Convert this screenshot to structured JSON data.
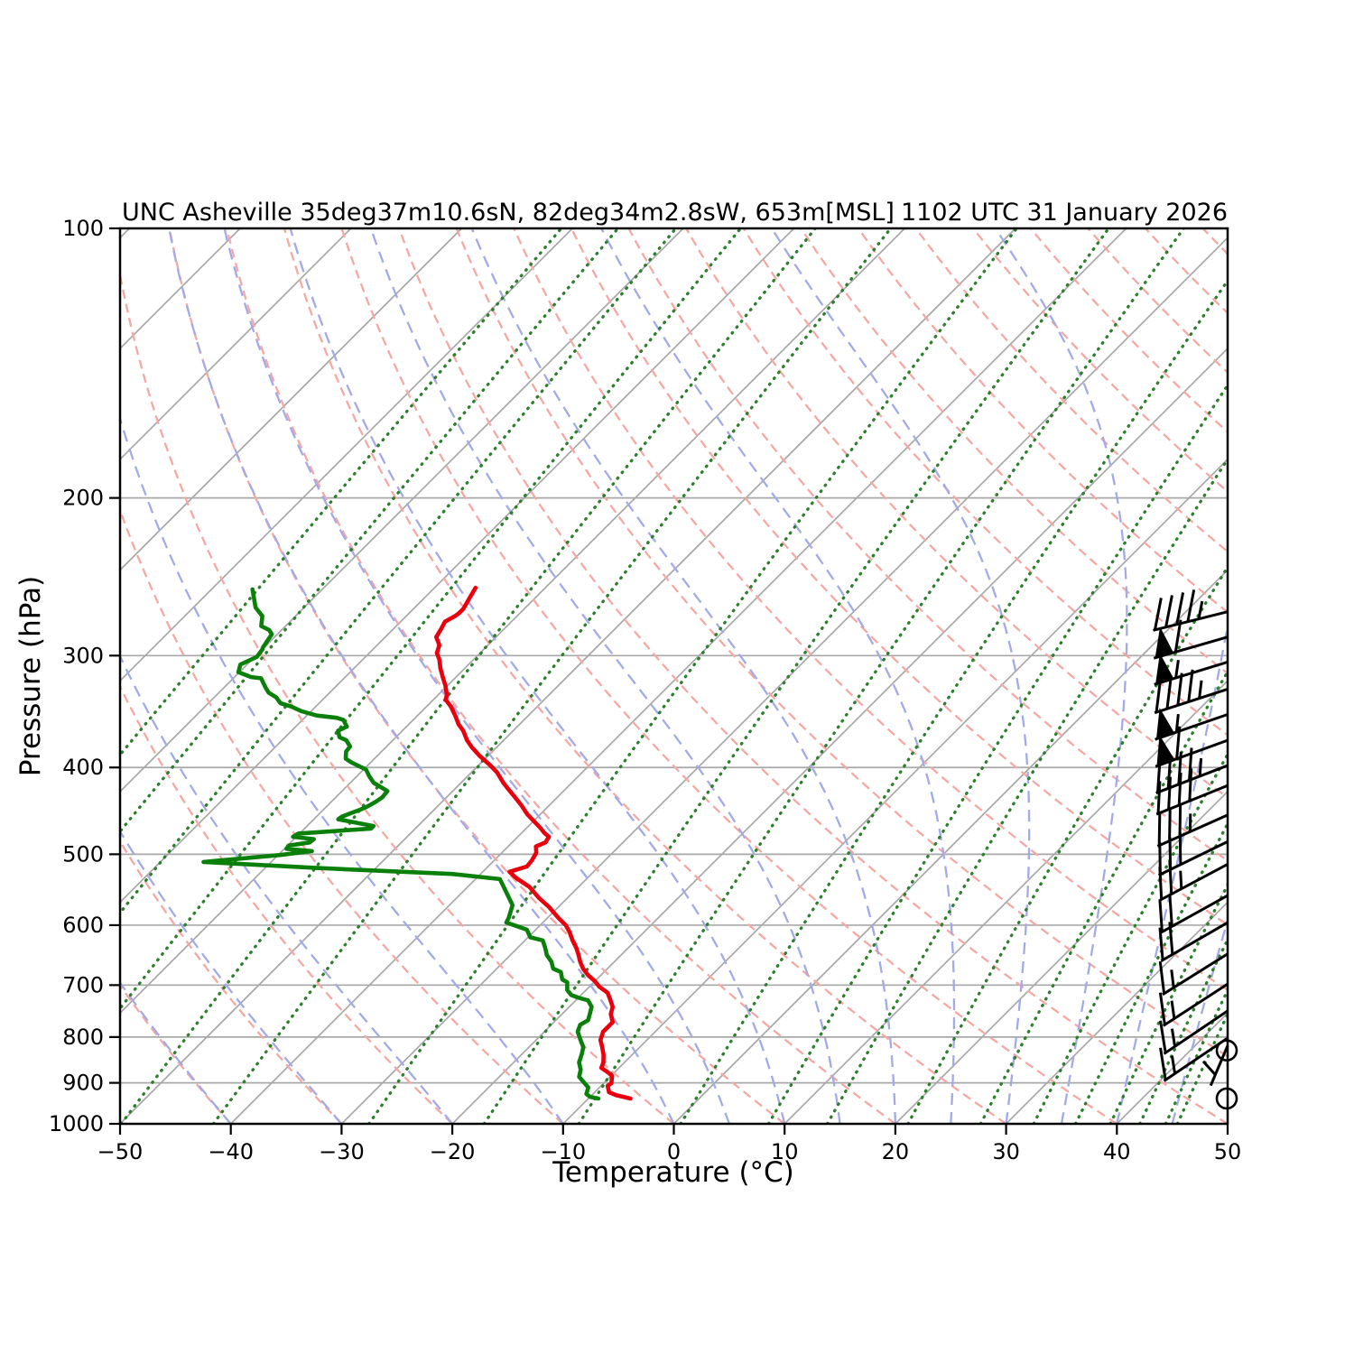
{
  "header": {
    "title_left": "UNC Asheville 35deg37m10.6sN, 82deg34m2.8sW, 653m[MSL]",
    "title_right": "1102 UTC 31 January 2026"
  },
  "axes": {
    "xlabel": "Temperature (°C)",
    "ylabel": "Pressure (hPa)",
    "x_ticks": [
      {
        "v": -50,
        "label": "−50"
      },
      {
        "v": -40,
        "label": "−40"
      },
      {
        "v": -30,
        "label": "−30"
      },
      {
        "v": -20,
        "label": "−20"
      },
      {
        "v": -10,
        "label": "−10"
      },
      {
        "v": 0,
        "label": "0"
      },
      {
        "v": 10,
        "label": "10"
      },
      {
        "v": 20,
        "label": "20"
      },
      {
        "v": 30,
        "label": "30"
      },
      {
        "v": 40,
        "label": "40"
      },
      {
        "v": 50,
        "label": "50"
      }
    ],
    "y_ticks": [
      {
        "v": 100,
        "label": "100"
      },
      {
        "v": 200,
        "label": "200"
      },
      {
        "v": 300,
        "label": "300"
      },
      {
        "v": 400,
        "label": "400"
      },
      {
        "v": 500,
        "label": "500"
      },
      {
        "v": 600,
        "label": "600"
      },
      {
        "v": 700,
        "label": "700"
      },
      {
        "v": 800,
        "label": "800"
      },
      {
        "v": 900,
        "label": "900"
      },
      {
        "v": 1000,
        "label": "1000"
      }
    ]
  },
  "chart_data": {
    "type": "line",
    "subtype": "skew-t-log-p-sounding",
    "title": "UNC Asheville 35deg37m10.6sN, 82deg34m2.8sW, 653m[MSL]",
    "xlabel": "Temperature (°C)",
    "ylabel": "Pressure (hPa)",
    "xlim_c": [
      -50,
      50
    ],
    "ylim_hpa": [
      1000,
      100
    ],
    "y_scale": "log",
    "skew_deg": 45,
    "series": [
      {
        "name": "temperature",
        "color": "#e8000d",
        "points_p_t": [
          [
            252,
            -66.3
          ],
          [
            259,
            -65.9
          ],
          [
            266,
            -65.5
          ],
          [
            269,
            -65.5
          ],
          [
            271,
            -65.6
          ],
          [
            275,
            -66.0
          ],
          [
            280,
            -65.7
          ],
          [
            286,
            -65.4
          ],
          [
            292,
            -64.4
          ],
          [
            298,
            -63.9
          ],
          [
            303,
            -63.1
          ],
          [
            310,
            -62.2
          ],
          [
            317,
            -61.2
          ],
          [
            324,
            -60.2
          ],
          [
            332,
            -59.2
          ],
          [
            336,
            -58.9
          ],
          [
            342,
            -57.8
          ],
          [
            350,
            -56.6
          ],
          [
            358,
            -55.5
          ],
          [
            364,
            -54.5
          ],
          [
            373,
            -53.3
          ],
          [
            380,
            -52.2
          ],
          [
            388,
            -50.8
          ],
          [
            398,
            -48.9
          ],
          [
            405,
            -47.7
          ],
          [
            416,
            -46.2
          ],
          [
            424,
            -45.0
          ],
          [
            432,
            -43.8
          ],
          [
            441,
            -42.5
          ],
          [
            451,
            -41.2
          ],
          [
            457,
            -40.3
          ],
          [
            467,
            -38.8
          ],
          [
            473,
            -38.0
          ],
          [
            478,
            -37.2
          ],
          [
            485,
            -37.0
          ],
          [
            490,
            -37.5
          ],
          [
            498,
            -36.9
          ],
          [
            508,
            -36.6
          ],
          [
            516,
            -36.5
          ],
          [
            523,
            -37.6
          ],
          [
            531,
            -36.5
          ],
          [
            544,
            -34.4
          ],
          [
            560,
            -32.5
          ],
          [
            573,
            -30.8
          ],
          [
            589,
            -29.0
          ],
          [
            600,
            -27.7
          ],
          [
            611,
            -26.7
          ],
          [
            624,
            -25.7
          ],
          [
            636,
            -24.7
          ],
          [
            647,
            -23.9
          ],
          [
            659,
            -23.1
          ],
          [
            671,
            -22.2
          ],
          [
            682,
            -21.2
          ],
          [
            693,
            -20.0
          ],
          [
            703,
            -19.1
          ],
          [
            714,
            -17.8
          ],
          [
            726,
            -17.0
          ],
          [
            740,
            -16.1
          ],
          [
            754,
            -15.6
          ],
          [
            770,
            -14.7
          ],
          [
            778,
            -14.7
          ],
          [
            789,
            -14.7
          ],
          [
            806,
            -14.2
          ],
          [
            821,
            -13.4
          ],
          [
            837,
            -12.6
          ],
          [
            854,
            -11.9
          ],
          [
            866,
            -11.6
          ],
          [
            876,
            -10.6
          ],
          [
            884,
            -9.9
          ],
          [
            901,
            -9.3
          ],
          [
            907,
            -9.4
          ],
          [
            922,
            -8.7
          ],
          [
            929,
            -7.8
          ],
          [
            937,
            -6.2
          ]
        ]
      },
      {
        "name": "dewpoint",
        "color": "#0a800a",
        "points_p_t": [
          [
            253,
            -86.3
          ],
          [
            265,
            -84.4
          ],
          [
            271,
            -83.0
          ],
          [
            278,
            -82.2
          ],
          [
            281,
            -81.1
          ],
          [
            284,
            -80.5
          ],
          [
            289,
            -80.3
          ],
          [
            294,
            -80.1
          ],
          [
            295,
            -80.0
          ],
          [
            301,
            -79.8
          ],
          [
            307,
            -80.6
          ],
          [
            313,
            -80.1
          ],
          [
            317,
            -78.5
          ],
          [
            318,
            -77.5
          ],
          [
            326,
            -76.2
          ],
          [
            330,
            -75.5
          ],
          [
            334,
            -74.4
          ],
          [
            339,
            -73.5
          ],
          [
            342,
            -72.2
          ],
          [
            346,
            -70.9
          ],
          [
            350,
            -69.1
          ],
          [
            352,
            -67.1
          ],
          [
            354,
            -66.3
          ],
          [
            360,
            -65.4
          ],
          [
            364,
            -65.8
          ],
          [
            370,
            -65.1
          ],
          [
            373,
            -64.2
          ],
          [
            379,
            -63.3
          ],
          [
            384,
            -63.2
          ],
          [
            391,
            -62.6
          ],
          [
            395,
            -61.7
          ],
          [
            402,
            -59.8
          ],
          [
            409,
            -58.9
          ],
          [
            416,
            -57.9
          ],
          [
            425,
            -55.9
          ],
          [
            432,
            -55.8
          ],
          [
            437,
            -56.0
          ],
          [
            442,
            -56.3
          ],
          [
            446,
            -56.7
          ],
          [
            449,
            -57.1
          ],
          [
            454,
            -57.7
          ],
          [
            457,
            -57.8
          ],
          [
            465,
            -54.0
          ],
          [
            468,
            -54.0
          ],
          [
            474,
            -60.1
          ],
          [
            478,
            -60.3
          ],
          [
            481,
            -58.2
          ],
          [
            485,
            -58.3
          ],
          [
            489,
            -59.9
          ],
          [
            493,
            -59.8
          ],
          [
            496,
            -57.3
          ],
          [
            501,
            -59.8
          ],
          [
            510,
            -66.1
          ],
          [
            518,
            -55.3
          ],
          [
            526,
            -42.6
          ],
          [
            533,
            -37.8
          ],
          [
            570,
            -34.3
          ],
          [
            589,
            -33.5
          ],
          [
            596,
            -33.3
          ],
          [
            603,
            -31.7
          ],
          [
            607,
            -30.8
          ],
          [
            619,
            -29.8
          ],
          [
            624,
            -28.4
          ],
          [
            636,
            -27.5
          ],
          [
            648,
            -26.7
          ],
          [
            659,
            -25.7
          ],
          [
            671,
            -24.9
          ],
          [
            677,
            -23.9
          ],
          [
            690,
            -23.1
          ],
          [
            695,
            -22.4
          ],
          [
            709,
            -21.7
          ],
          [
            718,
            -20.9
          ],
          [
            723,
            -20.0
          ],
          [
            728,
            -18.9
          ],
          [
            740,
            -18.0
          ],
          [
            754,
            -17.5
          ],
          [
            766,
            -17.1
          ],
          [
            775,
            -17.4
          ],
          [
            789,
            -17.0
          ],
          [
            806,
            -16.0
          ],
          [
            821,
            -15.1
          ],
          [
            836,
            -14.6
          ],
          [
            854,
            -14.1
          ],
          [
            870,
            -13.3
          ],
          [
            886,
            -12.8
          ],
          [
            897,
            -12.0
          ],
          [
            911,
            -11.0
          ],
          [
            926,
            -10.6
          ],
          [
            933,
            -10.0
          ],
          [
            937,
            -9.1
          ]
        ]
      }
    ],
    "wind_barbs": {
      "color": "#000000",
      "levels": [
        {
          "p": 268,
          "kt": 45,
          "dir": 256
        },
        {
          "p": 286,
          "kt": 60,
          "dir": 254
        },
        {
          "p": 305,
          "kt": 55,
          "dir": 253
        },
        {
          "p": 327,
          "kt": 45,
          "dir": 252
        },
        {
          "p": 349,
          "kt": 55,
          "dir": 251
        },
        {
          "p": 373,
          "kt": 60,
          "dir": 250
        },
        {
          "p": 398,
          "kt": 45,
          "dir": 249
        },
        {
          "p": 419,
          "kt": 40,
          "dir": 248
        },
        {
          "p": 452,
          "kt": 35,
          "dir": 246
        },
        {
          "p": 484,
          "kt": 30,
          "dir": 244
        },
        {
          "p": 513,
          "kt": 25,
          "dir": 242
        },
        {
          "p": 556,
          "kt": 20,
          "dir": 241
        },
        {
          "p": 596,
          "kt": 20,
          "dir": 240
        },
        {
          "p": 646,
          "kt": 15,
          "dir": 238
        },
        {
          "p": 698,
          "kt": 15,
          "dir": 237
        },
        {
          "p": 748,
          "kt": 15,
          "dir": 236
        },
        {
          "p": 802,
          "kt": 15,
          "dir": 236
        },
        {
          "p": 818,
          "kt": 5,
          "dir": 203,
          "len": 48
        },
        {
          "p": 828,
          "kt": 0
        },
        {
          "p": 937,
          "kt": 0
        }
      ]
    },
    "background": {
      "isotherms_c": {
        "min": -130,
        "max": 50,
        "step": 10,
        "color": "#a8a8a8"
      },
      "isobars_hpa": {
        "min": 100,
        "max": 1000,
        "step": 100,
        "color": "#a8a8a8"
      },
      "dry_adiabats_c": {
        "min": -40,
        "max": 200,
        "step": 10,
        "color": "#f5a8a4"
      },
      "moist_adiabats_start_c": [
        -40,
        -30,
        -20,
        -10,
        0,
        5,
        10,
        15,
        20,
        25,
        30,
        35,
        40,
        45
      ],
      "moist_adiabat_color": "#a3aae8",
      "mixing_ratio_g_kg": [
        0.001,
        0.0025,
        0.006,
        0.015,
        0.04,
        0.1,
        0.4,
        1,
        2,
        4,
        7,
        10,
        16,
        24,
        32,
        40,
        48,
        56,
        64,
        68
      ],
      "mixing_ratio_color": "#2d7f2d"
    }
  }
}
